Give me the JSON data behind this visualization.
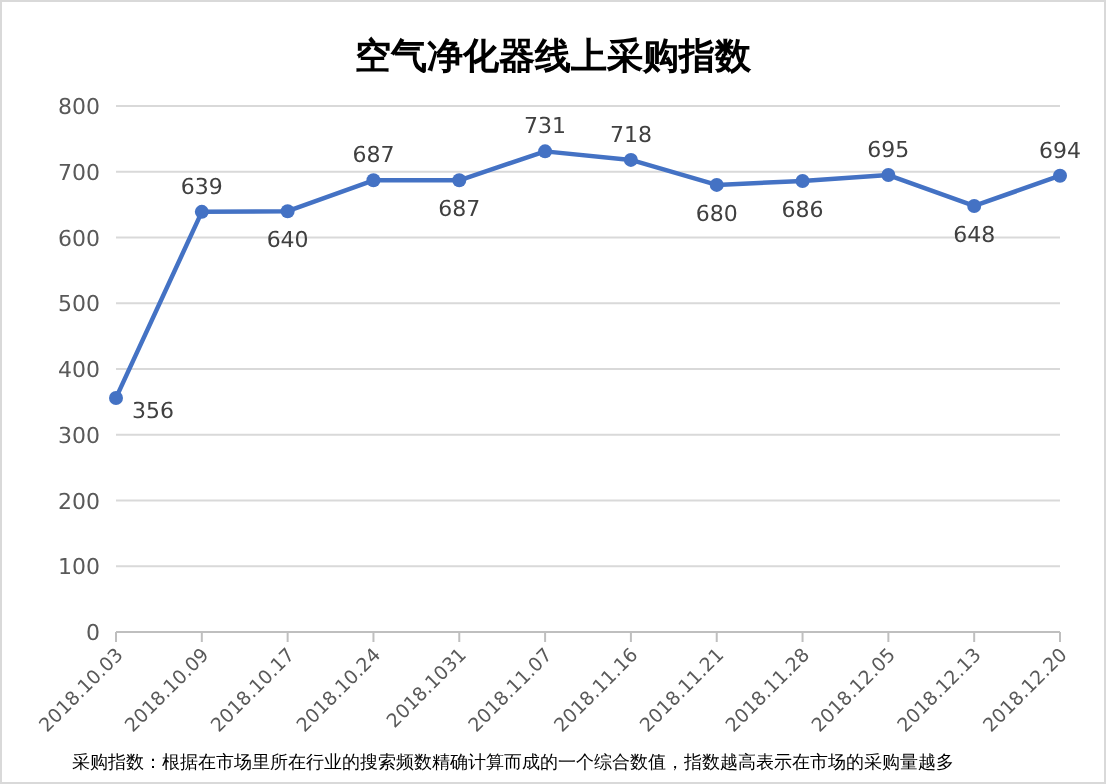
{
  "chart_data": {
    "type": "line",
    "title": "空气净化器线上采购指数",
    "categories": [
      "2018.10.03",
      "2018.10.09",
      "2018.10.17",
      "2018.10.24",
      "2018.1031",
      "2018.11.07",
      "2018.11.16",
      "2018.11.21",
      "2018.11.28",
      "2018.12.05",
      "2018.12.13",
      "2018.12.20"
    ],
    "series": [
      {
        "color": "#4472c4",
        "values": [
          356,
          639,
          640,
          687,
          687,
          731,
          718,
          680,
          686,
          695,
          648,
          694
        ]
      }
    ],
    "ylim": [
      0,
      800
    ],
    "yticks": [
      0,
      100,
      200,
      300,
      400,
      500,
      600,
      700,
      800
    ],
    "grid": "y",
    "marker": "circle",
    "data_labels": true,
    "annotations": [
      "采购指数：根据在市场里所在行业的搜索频数精确计算而成的一个综合数值，指数越高表示在市场的采购量越多"
    ]
  }
}
